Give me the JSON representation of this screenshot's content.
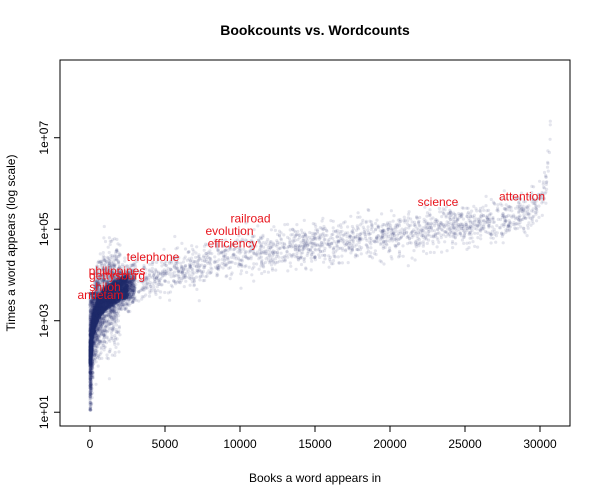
{
  "chart_data": {
    "type": "scatter",
    "title": "Bookcounts vs. Wordcounts",
    "xlabel": "Books a word appears in",
    "ylabel": "Times a word appears (log scale)",
    "xlim": [
      -2000,
      32000
    ],
    "ylim": [
      5,
      500000000
    ],
    "x_scale": "linear",
    "y_scale": "log",
    "x_ticks": [
      {
        "value": 0,
        "label": "0"
      },
      {
        "value": 5000,
        "label": "5000"
      },
      {
        "value": 10000,
        "label": "10000"
      },
      {
        "value": 15000,
        "label": "15000"
      },
      {
        "value": 20000,
        "label": "20000"
      },
      {
        "value": 25000,
        "label": "25000"
      },
      {
        "value": 30000,
        "label": "30000"
      }
    ],
    "y_ticks": [
      {
        "value": 10,
        "label": "1e+01"
      },
      {
        "value": 1000,
        "label": "1e+03"
      },
      {
        "value": 100000,
        "label": "1e+05"
      },
      {
        "value": 10000000,
        "label": "1e+07"
      }
    ],
    "grid": false,
    "point_color": "#1f2a6b",
    "annotation_color": "#e8141c",
    "series": [
      {
        "type": "scatter-band",
        "x_max": 30700,
        "trend_points": [
          [
            50,
            200
          ],
          [
            200,
            800
          ],
          [
            500,
            1800
          ],
          [
            1000,
            3000
          ],
          [
            2000,
            5000
          ],
          [
            5000,
            10000
          ],
          [
            10000,
            25000
          ],
          [
            15000,
            45000
          ],
          [
            20000,
            75000
          ],
          [
            25000,
            130000
          ],
          [
            28000,
            180000
          ],
          [
            29500,
            260000
          ],
          [
            30200,
            450000
          ],
          [
            30500,
            2000000
          ],
          [
            30700,
            20000000
          ]
        ]
      }
    ],
    "annotations": [
      {
        "text": "antietam",
        "x": 700,
        "y": 3000
      },
      {
        "text": "shiloh",
        "x": 1000,
        "y": 4500
      },
      {
        "text": "gettysburg",
        "x": 1800,
        "y": 8000
      },
      {
        "text": "philippines",
        "x": 1800,
        "y": 10000
      },
      {
        "text": "telephone",
        "x": 4200,
        "y": 20000
      },
      {
        "text": "efficiency",
        "x": 9500,
        "y": 40000
      },
      {
        "text": "evolution",
        "x": 9300,
        "y": 75000
      },
      {
        "text": "railroad",
        "x": 10700,
        "y": 140000
      },
      {
        "text": "science",
        "x": 23200,
        "y": 320000
      },
      {
        "text": "attention",
        "x": 28800,
        "y": 420000
      }
    ]
  }
}
